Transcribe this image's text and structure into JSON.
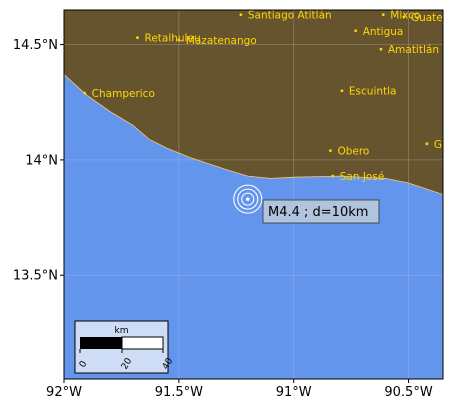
{
  "colors": {
    "land": "#66542f",
    "sea": "#6495ed",
    "coast": "#f0c878",
    "city": "#ffd700",
    "grid": "#c8c8c8",
    "annotation_bg": "#b0c4de",
    "scalebar_bg": "#cfdcf5"
  },
  "map": {
    "lon_range": [
      -92.0,
      -90.35
    ],
    "lat_range": [
      13.05,
      14.65
    ],
    "x_ticks": [
      {
        "value": -92.0,
        "label": "92°W"
      },
      {
        "value": -91.5,
        "label": "91.5°W"
      },
      {
        "value": -91.0,
        "label": "91°W"
      },
      {
        "value": -90.5,
        "label": "90.5°W"
      }
    ],
    "y_ticks": [
      {
        "value": 14.5,
        "label": "14.5°N"
      },
      {
        "value": 14.0,
        "label": "14°N"
      },
      {
        "value": 13.5,
        "label": "13.5°N"
      }
    ],
    "coastline": [
      [
        -92.0,
        14.37
      ],
      [
        -91.9,
        14.28
      ],
      [
        -91.8,
        14.21
      ],
      [
        -91.7,
        14.15
      ],
      [
        -91.63,
        14.09
      ],
      [
        -91.55,
        14.05
      ],
      [
        -91.45,
        14.01
      ],
      [
        -91.3,
        13.96
      ],
      [
        -91.2,
        13.93
      ],
      [
        -91.1,
        13.92
      ],
      [
        -91.0,
        13.925
      ],
      [
        -90.8,
        13.93
      ],
      [
        -90.6,
        13.92
      ],
      [
        -90.5,
        13.9
      ],
      [
        -90.35,
        13.85
      ]
    ],
    "cities": [
      {
        "name": "Santiago Atitlán",
        "lon": -91.23,
        "lat": 14.63
      },
      {
        "name": "Mixco",
        "lon": -90.61,
        "lat": 14.63
      },
      {
        "name": "Guate",
        "lon": -90.52,
        "lat": 14.62
      },
      {
        "name": "Retalhuleu",
        "lon": -91.68,
        "lat": 14.53
      },
      {
        "name": "Mazatenango",
        "lon": -91.5,
        "lat": 14.52
      },
      {
        "name": "Antigua",
        "lon": -90.73,
        "lat": 14.56
      },
      {
        "name": "Amatitlán",
        "lon": -90.62,
        "lat": 14.48
      },
      {
        "name": "Champerico",
        "lon": -91.91,
        "lat": 14.29
      },
      {
        "name": "Escuintla",
        "lon": -90.79,
        "lat": 14.3
      },
      {
        "name": "G",
        "lon": -90.42,
        "lat": 14.07
      },
      {
        "name": "Obero",
        "lon": -90.84,
        "lat": 14.04
      },
      {
        "name": "San José",
        "lon": -90.83,
        "lat": 13.93
      }
    ],
    "event": {
      "lon": -91.2,
      "lat": 13.83,
      "label": "M4.4 ; d=10km"
    },
    "scalebar": {
      "unit": "km",
      "ticks": [
        "0",
        "20",
        "40"
      ],
      "max_km": 40
    }
  }
}
